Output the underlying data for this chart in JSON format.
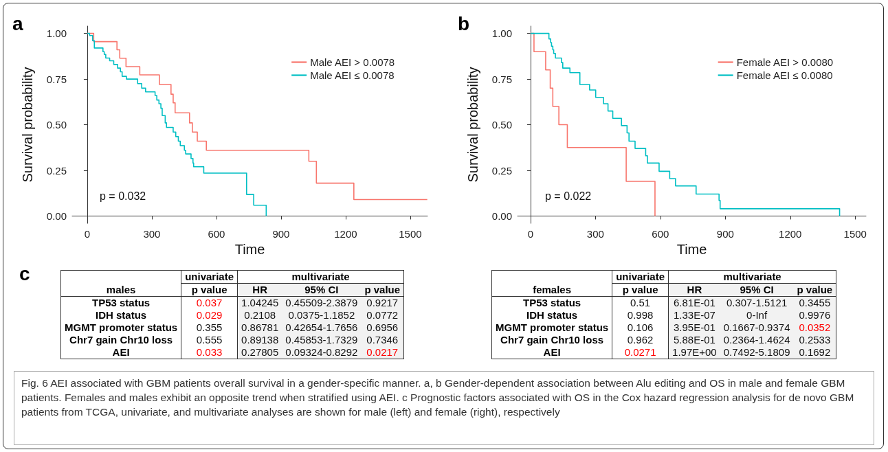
{
  "chart_data": [
    {
      "type": "step",
      "title": "a",
      "xlabel": "Time",
      "ylabel": "Survival probability",
      "legend": "top right",
      "grid": false,
      "annotations": [
        "p = 0.032"
      ],
      "xlim": [
        -70,
        1580
      ],
      "xticks": [
        0,
        300,
        600,
        900,
        1200,
        1500
      ],
      "ylim": [
        -0.04,
        1.04
      ],
      "yticks": [
        {
          "value": 0,
          "label": "0.00"
        },
        {
          "value": 0.25,
          "label": "0.25"
        },
        {
          "value": 0.5,
          "label": "0.50"
        },
        {
          "value": 0.75,
          "label": "0.75"
        },
        {
          "value": 1,
          "label": "1.00"
        }
      ],
      "series": [
        {
          "name": "Male AEI > 0.0078",
          "color": "#f8766d",
          "x": [
            0,
            30,
            138,
            151,
            180,
            244,
            335,
            389,
            399,
            408,
            475,
            488,
            511,
            553,
            1029,
            1064,
            1238,
            1579
          ],
          "values": [
            1,
            0.955,
            0.91,
            0.864,
            0.818,
            0.773,
            0.72,
            0.667,
            0.62,
            0.565,
            0.51,
            0.46,
            0.41,
            0.36,
            0.3,
            0.18,
            0.09,
            0.09
          ]
        },
        {
          "name": "Male AEI ≤ 0.0078",
          "color": "#00bfc4",
          "x": [
            0,
            11,
            25,
            33,
            73,
            79,
            86,
            104,
            123,
            141,
            154,
            162,
            182,
            234,
            253,
            271,
            315,
            323,
            333,
            342,
            348,
            362,
            368,
            399,
            411,
            423,
            432,
            451,
            457,
            482,
            491,
            494,
            541,
            740,
            773,
            831
          ],
          "values": [
            1,
            0.988,
            0.96,
            0.92,
            0.9,
            0.885,
            0.865,
            0.85,
            0.83,
            0.81,
            0.79,
            0.765,
            0.75,
            0.725,
            0.7,
            0.68,
            0.66,
            0.635,
            0.615,
            0.59,
            0.55,
            0.51,
            0.485,
            0.46,
            0.435,
            0.41,
            0.385,
            0.36,
            0.34,
            0.315,
            0.29,
            0.27,
            0.235,
            0.118,
            0.059,
            0
          ]
        }
      ]
    },
    {
      "type": "step",
      "title": "b",
      "xlabel": "Time",
      "ylabel": "Survival probability",
      "legend": "top right",
      "grid": false,
      "annotations": [
        "p = 0.022"
      ],
      "xlim": [
        -60,
        1550
      ],
      "xticks": [
        0,
        300,
        600,
        900,
        1200,
        1500
      ],
      "ylim": [
        -0.04,
        1.04
      ],
      "yticks": [
        {
          "value": 0,
          "label": "0.00"
        },
        {
          "value": 0.25,
          "label": "0.25"
        },
        {
          "value": 0.5,
          "label": "0.50"
        },
        {
          "value": 0.75,
          "label": "0.75"
        },
        {
          "value": 1,
          "label": "1.00"
        }
      ],
      "series": [
        {
          "name": "Female AEI > 0.0080",
          "color": "#f8766d",
          "x": [
            0,
            16,
            70,
            91,
            103,
            131,
            170,
            442,
            575
          ],
          "values": [
            1,
            0.9,
            0.8,
            0.7,
            0.6,
            0.5,
            0.375,
            0.19,
            0
          ]
        },
        {
          "name": "Female AEI ≤ 0.0080",
          "color": "#00bfc4",
          "x": [
            0,
            85,
            93,
            97,
            103,
            107,
            115,
            143,
            149,
            182,
            228,
            273,
            301,
            337,
            358,
            380,
            420,
            446,
            455,
            483,
            532,
            540,
            594,
            643,
            670,
            765,
            871,
            876,
            1428
          ],
          "values": [
            1,
            0.97,
            0.95,
            0.93,
            0.91,
            0.89,
            0.865,
            0.84,
            0.81,
            0.785,
            0.72,
            0.69,
            0.65,
            0.615,
            0.575,
            0.535,
            0.495,
            0.455,
            0.41,
            0.37,
            0.33,
            0.29,
            0.245,
            0.205,
            0.165,
            0.12,
            0.085,
            0.04,
            0
          ]
        }
      ]
    },
    {
      "type": "other",
      "title": "c",
      "annotations": [
        "univariate",
        "multivariate"
      ],
      "categories": [
        "males",
        "p value",
        "HR",
        "95% CI",
        "p value"
      ],
      "y_categories": [
        "TP53 status",
        "IDH status",
        "MGMT promoter status",
        "Chr7 gain Chr10 loss",
        "AEI"
      ],
      "cell_labels": [
        [
          "0.037",
          "1.04245",
          "0.45509-2.3879",
          "0.9217"
        ],
        [
          "0.029",
          "0.2108",
          "0.0375-1.1852",
          "0.0772"
        ],
        [
          "0.355",
          "0.86781",
          "0.42654-1.7656",
          "0.6956"
        ],
        [
          "0.555",
          "0.89138",
          "0.45853-1.7329",
          "0.7346"
        ],
        [
          "0.033",
          "0.27805",
          "0.09324-0.8292",
          "0.0217"
        ]
      ],
      "colors": [
        [
          "#ff0000",
          null,
          null,
          null
        ],
        [
          "#ff0000",
          null,
          null,
          null
        ],
        [
          null,
          null,
          null,
          null
        ],
        [
          null,
          null,
          null,
          null
        ],
        [
          "#ff0000",
          null,
          null,
          "#ff0000"
        ]
      ]
    },
    {
      "type": "other",
      "annotations": [
        "univariate",
        "multivariate"
      ],
      "categories": [
        "females",
        "p value",
        "HR",
        "95% CI",
        "p value"
      ],
      "y_categories": [
        "TP53 status",
        "IDH status",
        "MGMT promoter status",
        "Chr7 gain Chr10 loss",
        "AEI"
      ],
      "cell_labels": [
        [
          "0.51",
          "6.81E-01",
          "0.307-1.5121",
          "0.3455"
        ],
        [
          "0.998",
          "1.33E-07",
          "0-Inf",
          "0.9976"
        ],
        [
          "0.106",
          "3.95E-01",
          "0.1667-0.9374",
          "0.0352"
        ],
        [
          "0.962",
          "5.88E-01",
          "0.2364-1.4624",
          "0.2533"
        ],
        [
          "0.0271",
          "1.97E+00",
          "0.7492-5.1809",
          "0.1692"
        ]
      ],
      "colors": [
        [
          null,
          null,
          null,
          null
        ],
        [
          null,
          null,
          null,
          null
        ],
        [
          null,
          null,
          null,
          "#ff0000"
        ],
        [
          null,
          null,
          null,
          null
        ],
        [
          "#ff0000",
          null,
          null,
          null
        ]
      ]
    },
    {
      "type": "other",
      "annotations": [
        "Fig. 6 AEI associated with GBM patients overall survival in a gender-specific manner. a, b Gender-dependent association between Alu editing and OS in male and female GBM patients. Females and males exhibit an opposite trend when stratified using AEI. c Prognostic factors associated with OS in the Cox hazard regression analysis for de novo GBM patients from TCGA, univariate, and multivariate analyses are shown for male (left) and female (right), respectively"
      ]
    }
  ]
}
